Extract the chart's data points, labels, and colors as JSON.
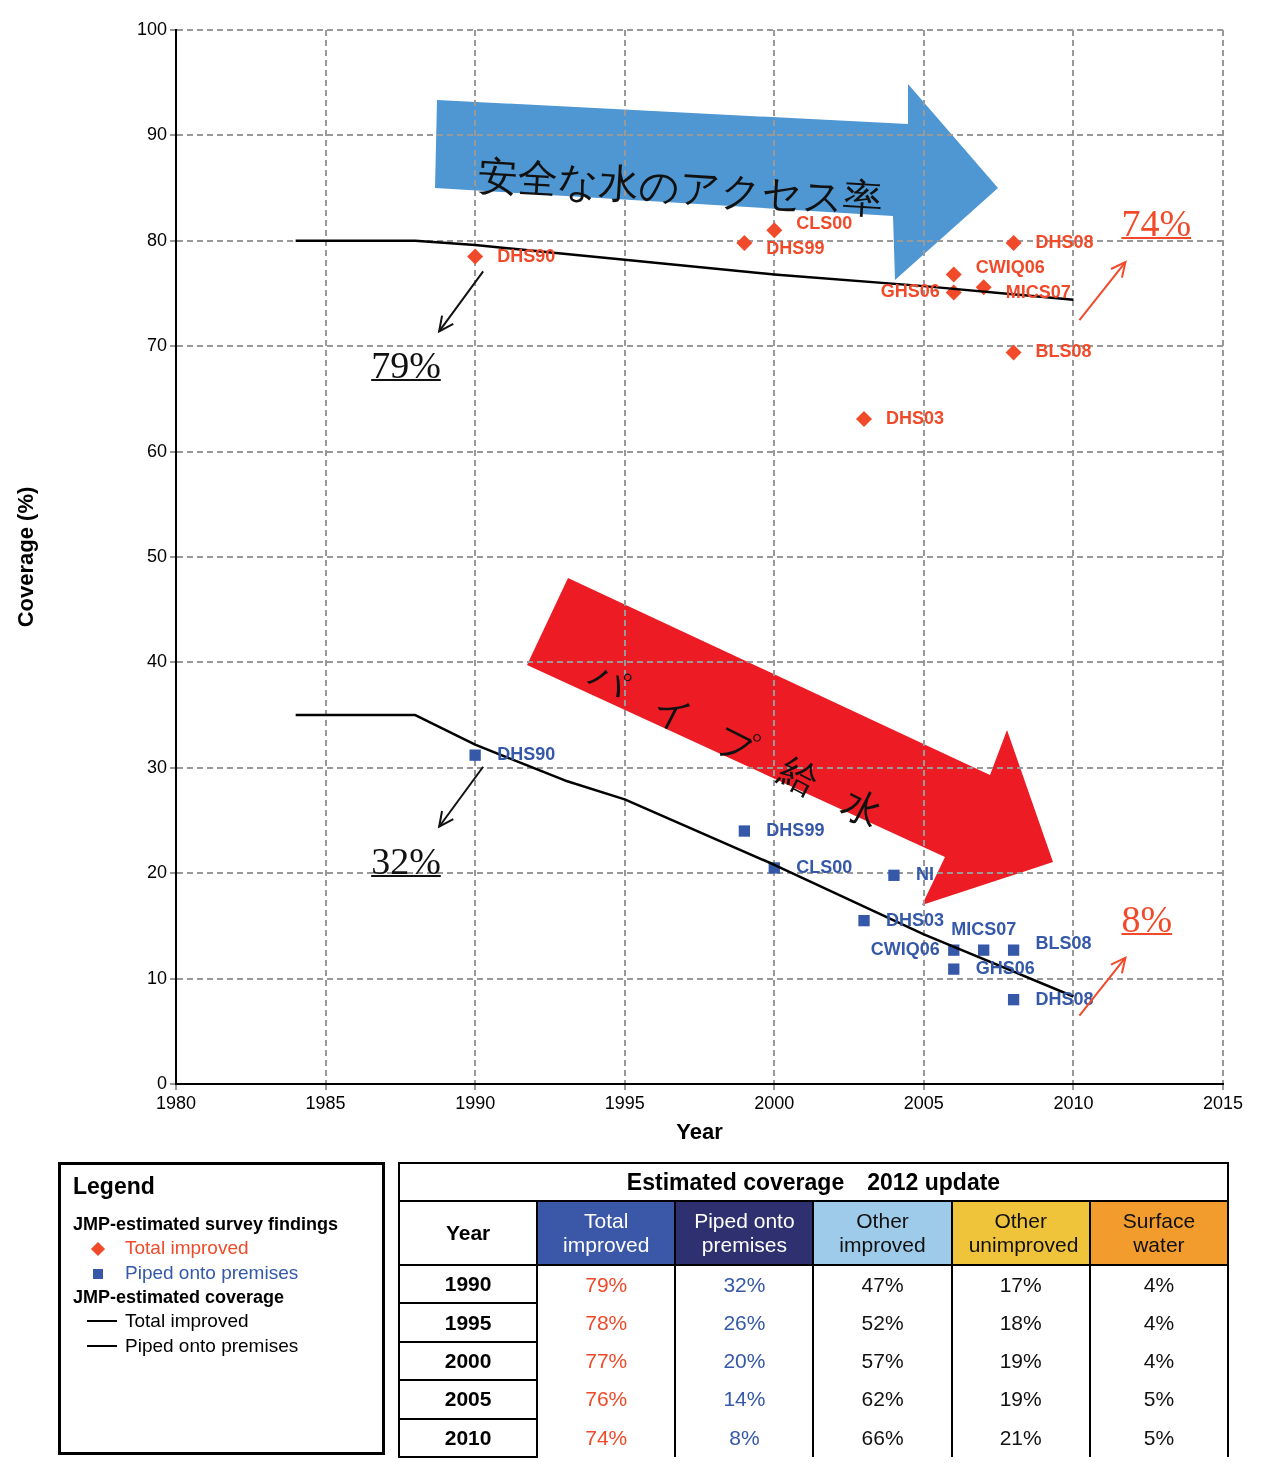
{
  "chart_data": [
    {
      "type": "scatter",
      "xlabel": "Year",
      "ylabel": "Coverage (%)",
      "xlim": [
        1980,
        2015
      ],
      "xticks": [
        1980,
        1985,
        1990,
        1995,
        2000,
        2005,
        2010,
        2015
      ],
      "ylim": [
        0,
        100
      ],
      "yticks": [
        0,
        10,
        20,
        30,
        40,
        50,
        60,
        70,
        80,
        90,
        100
      ],
      "grid": true,
      "legend": "bottom left",
      "legend_title": "Legend",
      "series": [
        {
          "name": "Total improved",
          "marker": "diamond",
          "color": "#f04a2a",
          "x": [
            1990,
            1999,
            2000,
            2003,
            2006,
            2006,
            2007,
            2008,
            2008
          ],
          "values": [
            78.5,
            79.8,
            81,
            63.1,
            76.8,
            75.1,
            75.6,
            79.8,
            69.4
          ]
        },
        {
          "name": "Piped onto premises",
          "marker": "square",
          "color": "#3558a8",
          "x": [
            1990,
            1999,
            2000,
            2003,
            2004,
            2006,
            2006,
            2007,
            2008,
            2008
          ],
          "values": [
            31.2,
            24,
            20.5,
            15.5,
            19.8,
            12.7,
            10.9,
            12.7,
            12.7,
            8
          ]
        },
        {
          "name": "Total improved",
          "type": "line",
          "marker": "none",
          "color": "#000000",
          "x": [
            1984,
            1988,
            1990,
            1995,
            2000,
            2005,
            2010
          ],
          "values": [
            80,
            80,
            79.6,
            78.2,
            76.8,
            75.7,
            74.4
          ]
        },
        {
          "name": "Piped onto premises",
          "type": "line",
          "marker": "none",
          "color": "#000000",
          "x": [
            1984,
            1988,
            1990,
            1993,
            1995,
            2000,
            2005,
            2010
          ],
          "values": [
            35,
            35,
            32.2,
            28.8,
            27,
            20.8,
            14.2,
            8.3
          ]
        }
      ],
      "annotations": [
        "安全な水のアクセス率",
        "パ イ プ 給 水",
        "JMP-estimated survey findings",
        "JMP-estimated coverage",
        {
          "text": "DHS90",
          "x": 1990,
          "y": 78.5
        },
        {
          "text": "DHS99",
          "x": 1999,
          "y": 79.8
        },
        {
          "text": "CLS00",
          "x": 2000,
          "y": 81
        },
        {
          "text": "DHS03",
          "x": 2003,
          "y": 63.1
        },
        {
          "text": "CWIQ06",
          "x": 2006,
          "y": 76.8
        },
        {
          "text": "GHS06",
          "x": 2006,
          "y": 75.1
        },
        {
          "text": "MICS07",
          "x": 2007,
          "y": 75.6
        },
        {
          "text": "DHS08",
          "x": 2008,
          "y": 79.8
        },
        {
          "text": "BLS08",
          "x": 2008,
          "y": 69.4
        },
        {
          "text": "DHS90",
          "x": 1990,
          "y": 31.2
        },
        {
          "text": "DHS99",
          "x": 1999,
          "y": 24
        },
        {
          "text": "CLS00",
          "x": 2000,
          "y": 20.5
        },
        {
          "text": "DHS03",
          "x": 2003,
          "y": 15.5
        },
        {
          "text": "NI",
          "x": 2004,
          "y": 19.8
        },
        {
          "text": "CWIQ06",
          "x": 2006,
          "y": 12.7
        },
        {
          "text": "GHS06",
          "x": 2006,
          "y": 10.9
        },
        {
          "text": "MICS07",
          "x": 2007,
          "y": 12.7
        },
        {
          "text": "BLS08",
          "x": 2008,
          "y": 12.7
        },
        {
          "text": "DHS08",
          "x": 2008,
          "y": 8
        },
        {
          "text": "79%",
          "x": 1990,
          "y": 79
        },
        {
          "text": "32%",
          "x": 1990,
          "y": 32
        },
        {
          "text": "74%",
          "x": 2010,
          "y": 74
        },
        {
          "text": "8%",
          "x": 2010,
          "y": 8
        }
      ]
    },
    {
      "type": "heatmap",
      "title": "Estimated coverage　2012 update",
      "ylabel": "Year",
      "categories": [
        "Total improved",
        "Piped onto premises",
        "Other improved",
        "Other unimproved",
        "Surface water"
      ],
      "colors": [
        "#3b57a7",
        "#2e3070",
        "#9ecbea",
        "#f0c43a",
        "#f29c2e"
      ],
      "y_categories": [
        "1990",
        "1995",
        "2000",
        "2005",
        "2010"
      ],
      "cells": [
        [
          79,
          32,
          47,
          17,
          4
        ],
        [
          78,
          26,
          52,
          18,
          4
        ],
        [
          77,
          20,
          57,
          19,
          4
        ],
        [
          76,
          14,
          62,
          19,
          5
        ],
        [
          74,
          8,
          66,
          21,
          5
        ]
      ],
      "cell_labels": [
        [
          "79%",
          "32%",
          "47%",
          "17%",
          "4%"
        ],
        [
          "78%",
          "26%",
          "52%",
          "18%",
          "4%"
        ],
        [
          "77%",
          "20%",
          "57%",
          "19%",
          "4%"
        ],
        [
          "76%",
          "14%",
          "62%",
          "19%",
          "5%"
        ],
        [
          "74%",
          "8%",
          "66%",
          "21%",
          "5%"
        ]
      ]
    }
  ]
}
